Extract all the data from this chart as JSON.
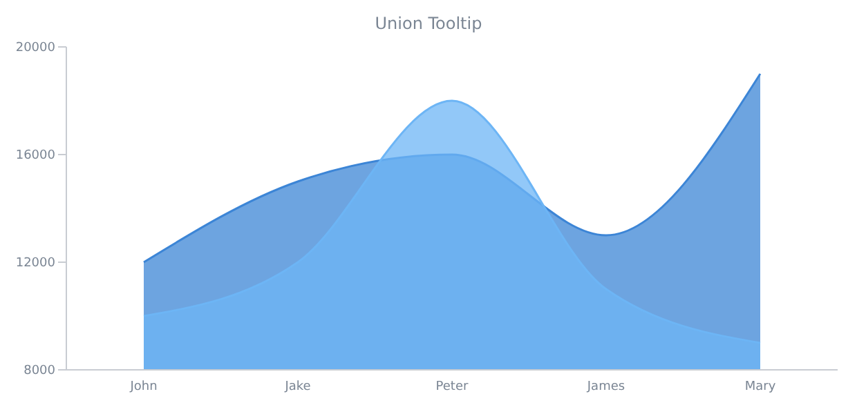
{
  "chart_data": {
    "type": "area",
    "title": "Union Tooltip",
    "categories": [
      "John",
      "Jake",
      "Peter",
      "James",
      "Mary"
    ],
    "series": [
      {
        "color": "#3c85d6",
        "values": [
          12000,
          15000,
          16000,
          13000,
          19000
        ]
      },
      {
        "color": "#6db5f5",
        "values": [
          10000,
          12000,
          18000,
          11000,
          9000
        ]
      }
    ],
    "ylim": [
      8000,
      20000
    ],
    "yticks": [
      8000,
      12000,
      16000,
      20000
    ],
    "grid": false,
    "legend": false
  }
}
